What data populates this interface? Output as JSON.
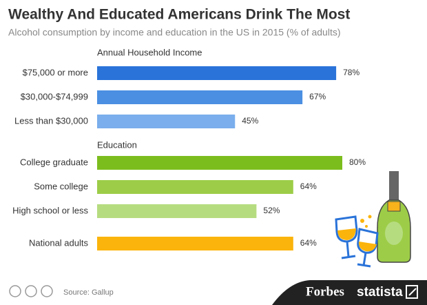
{
  "chart_data": {
    "type": "bar",
    "orientation": "horizontal",
    "title": "Wealthy And Educated Americans Drink The Most",
    "subtitle": "Alcohol consumption by income and education in the US in 2015 (% of adults)",
    "groups": [
      {
        "label": "Annual Household Income",
        "categories": [
          "$75,000 or more",
          "$30,000-$74,999",
          "Less than $30,000"
        ],
        "values": [
          78,
          67,
          45
        ],
        "value_labels": [
          "78%",
          "67%",
          "45%"
        ],
        "colors": [
          "#2a73d9",
          "#4a8fe2",
          "#7aaeec"
        ]
      },
      {
        "label": "Education",
        "categories": [
          "College graduate",
          "Some college",
          "High school or less"
        ],
        "values": [
          80,
          64,
          52
        ],
        "value_labels": [
          "80%",
          "64%",
          "52%"
        ],
        "colors": [
          "#7cbd1e",
          "#9dcd48",
          "#b6dc80"
        ]
      },
      {
        "categories": [
          "National adults"
        ],
        "values": [
          64
        ],
        "value_labels": [
          "64%"
        ],
        "colors": [
          "#fbb40c"
        ]
      }
    ],
    "source": "Source: Gallup",
    "brands": [
      "Forbes",
      "statista"
    ]
  }
}
